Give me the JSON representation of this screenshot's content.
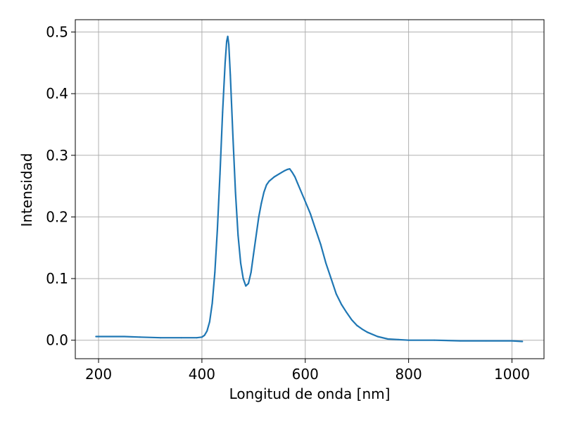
{
  "chart_data": {
    "type": "line",
    "title": "",
    "xlabel": "Longitud de onda [nm]",
    "ylabel": "Intensidad",
    "xlim": [
      155,
      1062
    ],
    "ylim": [
      -0.03,
      0.52
    ],
    "xticks": [
      200,
      400,
      600,
      800,
      1000
    ],
    "xtick_labels": [
      "200",
      "400",
      "600",
      "800",
      "1000"
    ],
    "yticks": [
      0.0,
      0.1,
      0.2,
      0.3,
      0.4,
      0.5
    ],
    "ytick_labels": [
      "0.0",
      "0.1",
      "0.2",
      "0.3",
      "0.4",
      "0.5"
    ],
    "grid": true,
    "line_color": "#1f77b4",
    "series": [
      {
        "x": [
          195,
          220,
          250,
          280,
          320,
          360,
          390,
          400,
          405,
          410,
          415,
          420,
          425,
          430,
          435,
          440,
          445,
          448,
          450,
          452,
          455,
          460,
          465,
          470,
          475,
          480,
          485,
          490,
          495,
          500,
          505,
          510,
          515,
          520,
          525,
          530,
          540,
          550,
          560,
          565,
          570,
          575,
          580,
          585,
          590,
          600,
          610,
          620,
          630,
          640,
          650,
          660,
          670,
          680,
          690,
          700,
          710,
          720,
          740,
          760,
          780,
          800,
          850,
          900,
          950,
          1000,
          1020
        ],
        "y": [
          0.006,
          0.006,
          0.006,
          0.005,
          0.004,
          0.004,
          0.004,
          0.005,
          0.008,
          0.015,
          0.03,
          0.06,
          0.11,
          0.18,
          0.27,
          0.37,
          0.45,
          0.485,
          0.493,
          0.48,
          0.43,
          0.33,
          0.24,
          0.17,
          0.125,
          0.1,
          0.088,
          0.092,
          0.11,
          0.14,
          0.17,
          0.2,
          0.222,
          0.24,
          0.252,
          0.258,
          0.265,
          0.27,
          0.275,
          0.277,
          0.278,
          0.272,
          0.265,
          0.255,
          0.245,
          0.225,
          0.205,
          0.18,
          0.155,
          0.125,
          0.1,
          0.075,
          0.058,
          0.045,
          0.033,
          0.024,
          0.018,
          0.013,
          0.006,
          0.002,
          0.001,
          0.0,
          0.0,
          -0.001,
          -0.001,
          -0.001,
          -0.002
        ]
      }
    ]
  }
}
